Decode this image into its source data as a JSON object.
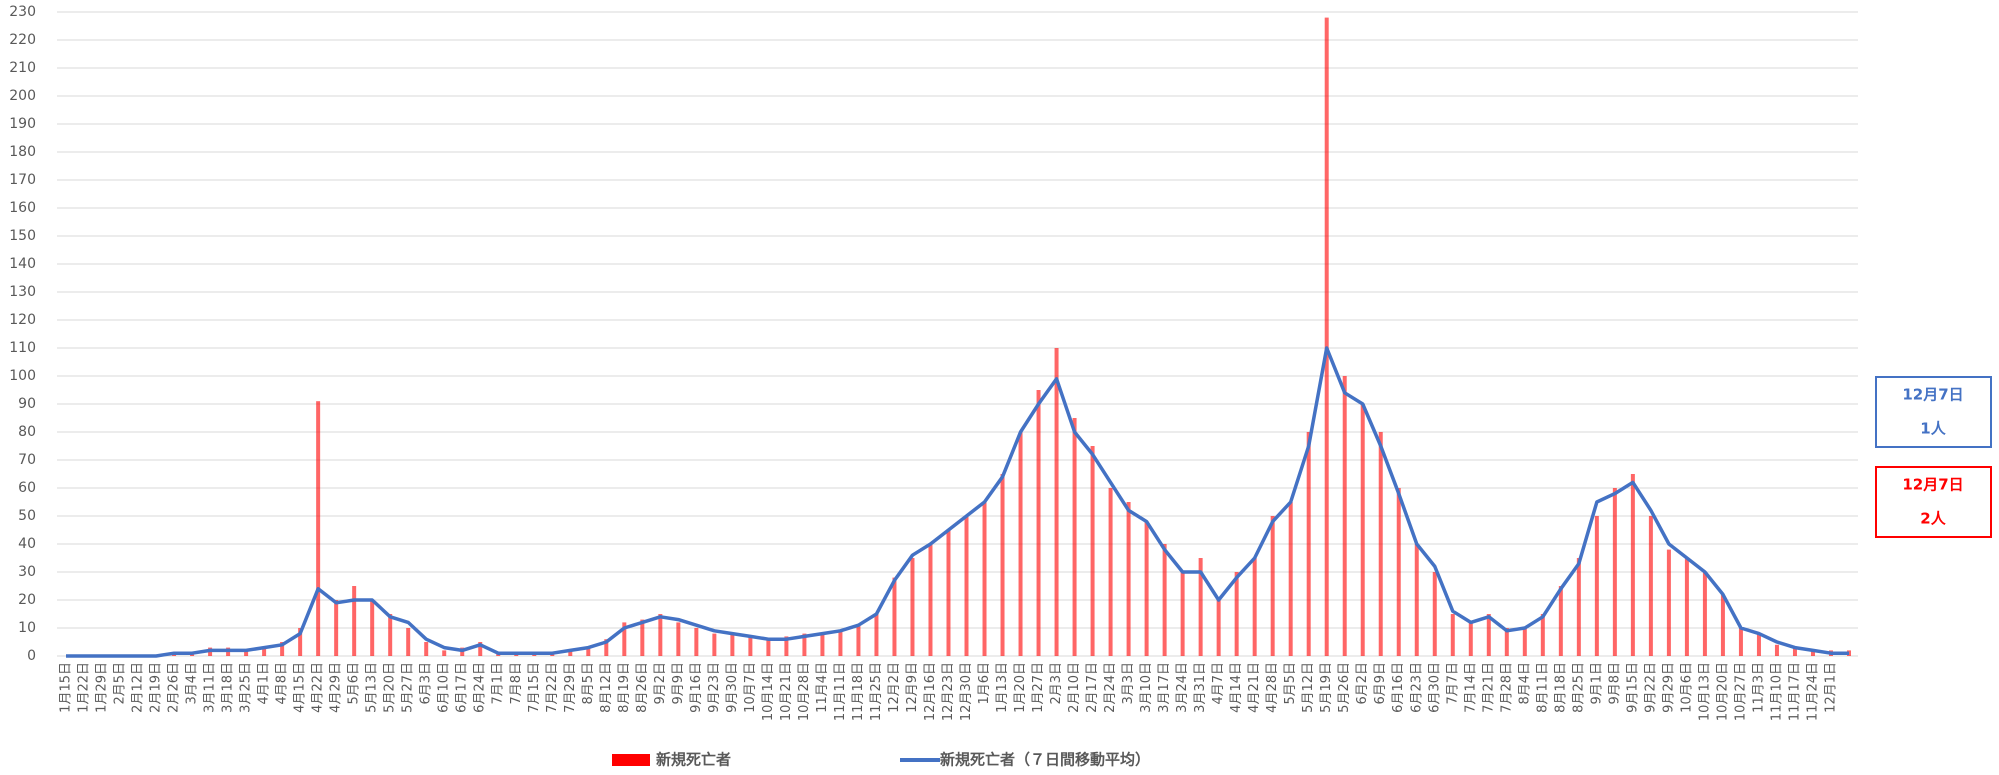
{
  "chart_data": {
    "type": "bar",
    "categories": [
      "1月15日",
      "1月22日",
      "1月29日",
      "2月5日",
      "2月12日",
      "2月19日",
      "2月26日",
      "3月4日",
      "3月11日",
      "3月18日",
      "3月25日",
      "4月1日",
      "4月8日",
      "4月15日",
      "4月22日",
      "4月29日",
      "5月6日",
      "5月13日",
      "5月20日",
      "5月27日",
      "6月3日",
      "6月10日",
      "6月17日",
      "6月24日",
      "7月1日",
      "7月8日",
      "7月15日",
      "7月22日",
      "7月29日",
      "8月5日",
      "8月12日",
      "8月19日",
      "8月26日",
      "9月2日",
      "9月9日",
      "9月16日",
      "9月23日",
      "9月30日",
      "10月7日",
      "10月14日",
      "10月21日",
      "10月28日",
      "11月4日",
      "11月11日",
      "11月18日",
      "11月25日",
      "12月2日",
      "12月9日",
      "12月16日",
      "12月23日",
      "12月30日",
      "1月6日",
      "1月13日",
      "1月20日",
      "1月27日",
      "2月3日",
      "2月10日",
      "2月17日",
      "2月24日",
      "3月3日",
      "3月10日",
      "3月17日",
      "3月24日",
      "3月31日",
      "4月7日",
      "4月14日",
      "4月21日",
      "4月28日",
      "5月5日",
      "5月12日",
      "5月19日",
      "5月26日",
      "6月2日",
      "6月9日",
      "6月16日",
      "6月23日",
      "6月30日",
      "7月7日",
      "7月14日",
      "7月21日",
      "7月28日",
      "8月4日",
      "8月11日",
      "8月18日",
      "8月25日",
      "9月1日",
      "9月8日",
      "9月15日",
      "9月22日",
      "9月29日",
      "10月6日",
      "10月13日",
      "10月20日",
      "10月27日",
      "11月3日",
      "11月10日",
      "11月17日",
      "11月24日",
      "12月1日",
      null
    ],
    "series": [
      {
        "name": "新規死亡者",
        "color": "#ff0000",
        "values": [
          0,
          0,
          0,
          0,
          0,
          0,
          1,
          1,
          3,
          3,
          2,
          3,
          5,
          10,
          91,
          20,
          25,
          20,
          15,
          10,
          5,
          2,
          3,
          5,
          1,
          1,
          1,
          1,
          2,
          3,
          6,
          12,
          13,
          15,
          12,
          10,
          8,
          8,
          7,
          6,
          7,
          8,
          8,
          9,
          11,
          15,
          28,
          35,
          40,
          45,
          50,
          55,
          65,
          80,
          95,
          110,
          85,
          75,
          60,
          55,
          48,
          40,
          30,
          35,
          20,
          30,
          35,
          50,
          55,
          80,
          228,
          100,
          90,
          80,
          60,
          40,
          30,
          15,
          12,
          15,
          10,
          10,
          15,
          25,
          35,
          50,
          60,
          65,
          50,
          38,
          35,
          30,
          22,
          10,
          8,
          4,
          3,
          2,
          2,
          2
        ]
      },
      {
        "name": "新規死亡者（７日間移動平均）",
        "color": "#4472c4",
        "values": [
          0,
          0,
          0,
          0,
          0,
          0,
          1,
          1,
          2,
          2,
          2,
          3,
          4,
          8,
          24,
          19,
          20,
          20,
          14,
          12,
          6,
          3,
          2,
          4,
          1,
          1,
          1,
          1,
          2,
          3,
          5,
          10,
          12,
          14,
          13,
          11,
          9,
          8,
          7,
          6,
          6,
          7,
          8,
          9,
          11,
          15,
          27,
          36,
          40,
          45,
          50,
          55,
          64,
          80,
          90,
          99,
          80,
          72,
          62,
          52,
          48,
          38,
          30,
          30,
          20,
          28,
          35,
          48,
          55,
          75,
          110,
          94,
          90,
          75,
          58,
          40,
          32,
          16,
          12,
          14,
          9,
          10,
          14,
          24,
          33,
          55,
          58,
          62,
          52,
          40,
          35,
          30,
          22,
          10,
          8,
          5,
          3,
          2,
          1,
          1
        ]
      }
    ],
    "ylim": [
      0,
      230
    ],
    "yticks": [
      0,
      10,
      20,
      30,
      40,
      50,
      60,
      70,
      80,
      90,
      100,
      110,
      120,
      130,
      140,
      150,
      160,
      170,
      180,
      190,
      200,
      210,
      220,
      230
    ],
    "grid": true,
    "annotations": [
      {
        "date": "12月7日",
        "text": "1人",
        "color": "#4472c4"
      },
      {
        "date": "12月7日",
        "text": "2人",
        "color": "#ff0000"
      }
    ]
  }
}
